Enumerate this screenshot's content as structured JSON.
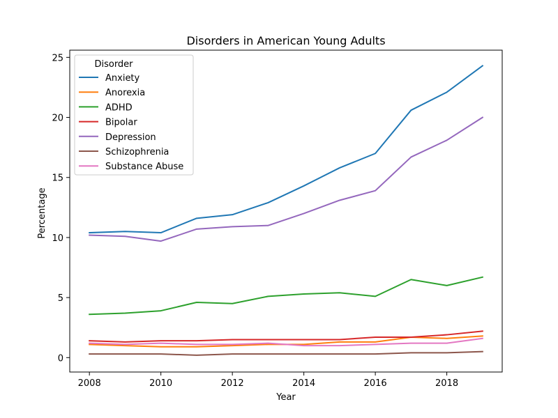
{
  "chart_data": {
    "type": "line",
    "title": "Disorders in American Young Adults",
    "xlabel": "Year",
    "ylabel": "Percentage",
    "xlim": [
      2007.45,
      2019.55
    ],
    "ylim": [
      -1.2,
      25.6
    ],
    "xticks": [
      2008,
      2010,
      2012,
      2014,
      2016,
      2018
    ],
    "yticks": [
      0,
      5,
      10,
      15,
      20,
      25
    ],
    "grid": false,
    "legend": {
      "title": "Disorder",
      "placement": "top-left"
    },
    "x": [
      2008,
      2009,
      2010,
      2011,
      2012,
      2013,
      2014,
      2015,
      2016,
      2017,
      2018,
      2019
    ],
    "series": [
      {
        "name": "Anxiety",
        "color": "#1f77b4",
        "values": [
          10.4,
          10.5,
          10.4,
          11.6,
          11.9,
          12.9,
          14.3,
          15.8,
          17.0,
          20.6,
          22.1,
          24.3
        ]
      },
      {
        "name": "Anorexia",
        "color": "#ff7f0e",
        "values": [
          1.1,
          1.0,
          0.9,
          0.9,
          1.0,
          1.1,
          1.1,
          1.3,
          1.3,
          1.7,
          1.6,
          1.8
        ]
      },
      {
        "name": "ADHD",
        "color": "#2ca02c",
        "values": [
          3.6,
          3.7,
          3.9,
          4.6,
          4.5,
          5.1,
          5.3,
          5.4,
          5.1,
          6.5,
          6.0,
          6.7
        ]
      },
      {
        "name": "Bipolar",
        "color": "#d62728",
        "values": [
          1.4,
          1.3,
          1.4,
          1.4,
          1.5,
          1.5,
          1.5,
          1.5,
          1.7,
          1.7,
          1.9,
          2.2
        ]
      },
      {
        "name": "Depression",
        "color": "#9467bd",
        "values": [
          10.2,
          10.1,
          9.7,
          10.7,
          10.9,
          11.0,
          12.0,
          13.1,
          13.9,
          16.7,
          18.1,
          20.0
        ]
      },
      {
        "name": "Schizophrenia",
        "color": "#8c564b",
        "values": [
          0.3,
          0.3,
          0.3,
          0.2,
          0.3,
          0.3,
          0.3,
          0.3,
          0.3,
          0.4,
          0.4,
          0.5
        ]
      },
      {
        "name": "Substance Abuse",
        "color": "#e377c2",
        "values": [
          1.2,
          1.1,
          1.2,
          1.1,
          1.1,
          1.2,
          1.0,
          1.0,
          1.1,
          1.2,
          1.2,
          1.6
        ]
      }
    ]
  }
}
